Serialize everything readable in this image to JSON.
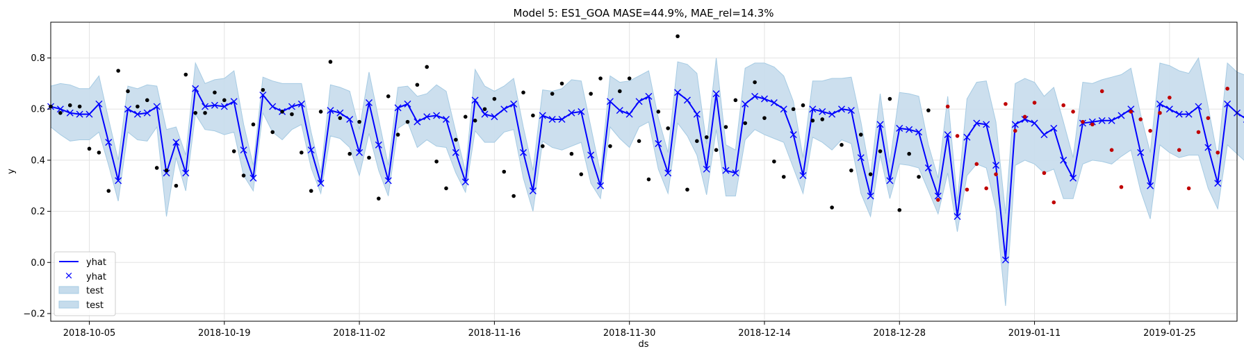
{
  "chart_data": {
    "type": "line",
    "title": "Model 5: ES1_GOA MASE=44.9%, MAE_rel=14.3%",
    "xlabel": "ds",
    "ylabel": "y",
    "x_range": [
      "2018-10-01",
      "2019-02-01"
    ],
    "ylim": [
      -0.23,
      0.94
    ],
    "grid": true,
    "legend_position": "lower-left",
    "x_ticks": [
      "2018-10-05",
      "2018-10-19",
      "2018-11-02",
      "2018-11-16",
      "2018-11-30",
      "2018-12-14",
      "2018-12-28",
      "2019-01-11",
      "2019-01-25"
    ],
    "y_ticks": [
      "−0.2",
      "0.0",
      "0.2",
      "0.4",
      "0.6",
      "0.8"
    ],
    "y_tick_values": [
      -0.2,
      0.0,
      0.2,
      0.4,
      0.6,
      0.8
    ],
    "legend": [
      {
        "label": "yhat",
        "kind": "line",
        "color": "#0000ff"
      },
      {
        "label": "yhat",
        "kind": "marker",
        "color": "#0000ff"
      },
      {
        "label": "test",
        "kind": "band",
        "color": "#a6cee3"
      },
      {
        "label": "test",
        "kind": "band",
        "color": "#a6cee3"
      }
    ],
    "colors": {
      "yhat": "#0000ff",
      "band_fill": "#c6dcec",
      "band_edge": "#a6cbe3",
      "actual": "#000000",
      "test_actual": "#c00000"
    },
    "start_date": "2018-10-01",
    "test_start_date": "2019-01-01",
    "yhat": [
      0.61,
      0.6,
      0.585,
      0.58,
      0.58,
      0.62,
      0.47,
      0.32,
      0.6,
      0.58,
      0.585,
      0.61,
      0.35,
      0.47,
      0.35,
      0.68,
      0.61,
      0.615,
      0.61,
      0.63,
      0.44,
      0.33,
      0.655,
      0.61,
      0.59,
      0.61,
      0.62,
      0.44,
      0.31,
      0.595,
      0.585,
      0.56,
      0.43,
      0.625,
      0.46,
      0.32,
      0.605,
      0.62,
      0.55,
      0.57,
      0.575,
      0.56,
      0.43,
      0.315,
      0.635,
      0.58,
      0.57,
      0.6,
      0.62,
      0.43,
      0.28,
      0.575,
      0.56,
      0.56,
      0.585,
      0.59,
      0.42,
      0.3,
      0.63,
      0.595,
      0.58,
      0.63,
      0.65,
      0.465,
      0.35,
      0.665,
      0.635,
      0.58,
      0.365,
      0.66,
      0.36,
      0.35,
      0.62,
      0.65,
      0.64,
      0.625,
      0.6,
      0.5,
      0.34,
      0.6,
      0.59,
      0.58,
      0.6,
      0.595,
      0.41,
      0.26,
      0.54,
      0.32,
      0.525,
      0.52,
      0.51,
      0.37,
      0.26,
      0.5,
      0.18,
      0.49,
      0.545,
      0.54,
      0.38,
      0.01,
      0.54,
      0.56,
      0.545,
      0.5,
      0.525,
      0.4,
      0.33,
      0.545,
      0.55,
      0.555,
      0.555,
      0.575,
      0.6,
      0.43,
      0.3,
      0.62,
      0.6,
      0.58,
      0.58,
      0.61,
      0.45,
      0.31,
      0.62,
      0.585,
      0.56,
      0.575
    ],
    "band_width": [
      0.08,
      0.1,
      0.11,
      0.1,
      0.1,
      0.11,
      0.09,
      0.08,
      0.09,
      0.1,
      0.11,
      0.08,
      0.17,
      0.06,
      0.07,
      0.1,
      0.09,
      0.1,
      0.11,
      0.12,
      0.1,
      0.05,
      0.07,
      0.1,
      0.11,
      0.09,
      0.08,
      0.07,
      0.04,
      0.1,
      0.1,
      0.11,
      0.09,
      0.12,
      0.1,
      0.06,
      0.08,
      0.07,
      0.1,
      0.09,
      0.12,
      0.11,
      0.08,
      0.04,
      0.12,
      0.11,
      0.1,
      0.09,
      0.1,
      0.1,
      0.08,
      0.1,
      0.11,
      0.12,
      0.13,
      0.12,
      0.11,
      0.05,
      0.1,
      0.11,
      0.13,
      0.1,
      0.1,
      0.1,
      0.08,
      0.12,
      0.14,
      0.16,
      0.1,
      0.14,
      0.1,
      0.09,
      0.14,
      0.13,
      0.14,
      0.14,
      0.13,
      0.13,
      0.07,
      0.11,
      0.12,
      0.14,
      0.12,
      0.13,
      0.14,
      0.08,
      0.12,
      0.07,
      0.14,
      0.14,
      0.14,
      0.09,
      0.07,
      0.15,
      0.06,
      0.15,
      0.16,
      0.17,
      0.17,
      0.18,
      0.16,
      0.16,
      0.16,
      0.15,
      0.16,
      0.15,
      0.08,
      0.16,
      0.15,
      0.16,
      0.17,
      0.16,
      0.16,
      0.15,
      0.13,
      0.16,
      0.17,
      0.17,
      0.16,
      0.19,
      0.16,
      0.1,
      0.16,
      0.16,
      0.17,
      0.17
    ],
    "actual": [
      0.61,
      0.585,
      0.615,
      0.61,
      0.445,
      0.43,
      0.28,
      0.75,
      0.67,
      0.61,
      0.635,
      0.37,
      0.36,
      0.3,
      0.735,
      0.585,
      0.585,
      0.665,
      0.635,
      0.435,
      0.34,
      0.54,
      0.675,
      0.51,
      0.59,
      0.58,
      0.43,
      0.28,
      0.59,
      0.785,
      0.565,
      0.425,
      0.55,
      0.41,
      0.25,
      0.65,
      0.5,
      0.55,
      0.695,
      0.765,
      0.395,
      0.29,
      0.48,
      0.57,
      0.555,
      0.6,
      0.64,
      0.355,
      0.26,
      0.665,
      0.575,
      0.455,
      0.66,
      0.7,
      0.425,
      0.345,
      0.66,
      0.72,
      0.455,
      0.67,
      0.72,
      0.475,
      0.325,
      0.59,
      0.525,
      0.885,
      0.285,
      0.475,
      0.49,
      0.44,
      0.53,
      0.635,
      0.545,
      0.705,
      0.565,
      0.395,
      0.335,
      0.6,
      0.615,
      0.555,
      0.56,
      0.215,
      0.46,
      0.36,
      0.5,
      0.345,
      0.435,
      0.64,
      0.205,
      0.425,
      0.335,
      0.595,
      0.245,
      0.61,
      0.495,
      0.285,
      0.385,
      0.29,
      0.345,
      0.62,
      0.515,
      0.57,
      0.625,
      0.35,
      0.235,
      0.615,
      0.59,
      0.55,
      0.54,
      0.67,
      0.44,
      0.295,
      0.59,
      0.56,
      0.515,
      0.585,
      0.645,
      0.44,
      0.29,
      0.51,
      0.565,
      0.43,
      0.68
    ],
    "actual_dates_offset_note": ""
  }
}
